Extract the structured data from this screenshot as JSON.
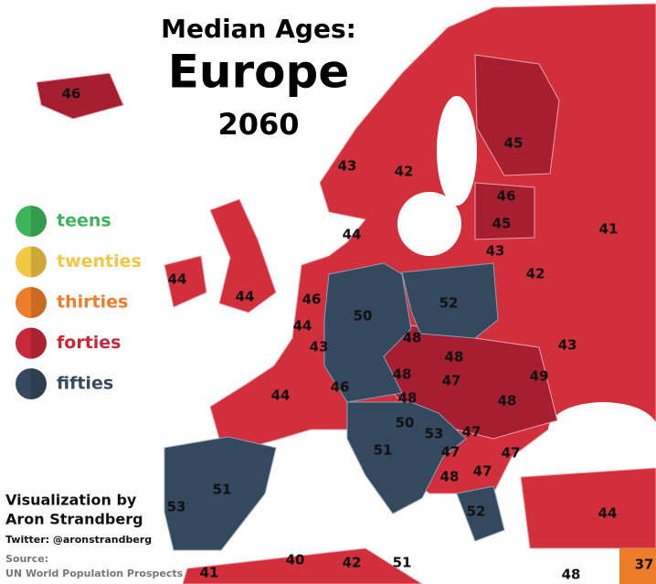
{
  "title": {
    "line1": "Median Ages:",
    "line2": "Europe",
    "line3": "2060"
  },
  "legend": [
    {
      "label": "teens",
      "color": "#3cb55a"
    },
    {
      "label": "twenties",
      "color": "#f2c744"
    },
    {
      "label": "thirties",
      "color": "#ee7d2a"
    },
    {
      "label": "forties",
      "color": "#c8293a"
    },
    {
      "label": "fifties",
      "color": "#34495e"
    }
  ],
  "credits": {
    "by": "Visualization by",
    "author": "Aron Strandberg",
    "twitter": "Twitter: @aronstrandberg",
    "source_label": "Source:",
    "source": "UN World Population Prospects"
  },
  "map_labels": [
    46,
    45,
    43,
    42,
    46,
    45,
    43,
    44,
    41,
    42,
    44,
    44,
    46,
    50,
    52,
    44,
    43,
    48,
    43,
    48,
    48,
    47,
    49,
    44,
    46,
    48,
    48,
    50,
    53,
    47,
    51,
    47,
    47,
    48,
    47,
    52,
    51,
    53,
    44,
    40,
    42,
    51,
    41,
    48,
    37
  ]
}
